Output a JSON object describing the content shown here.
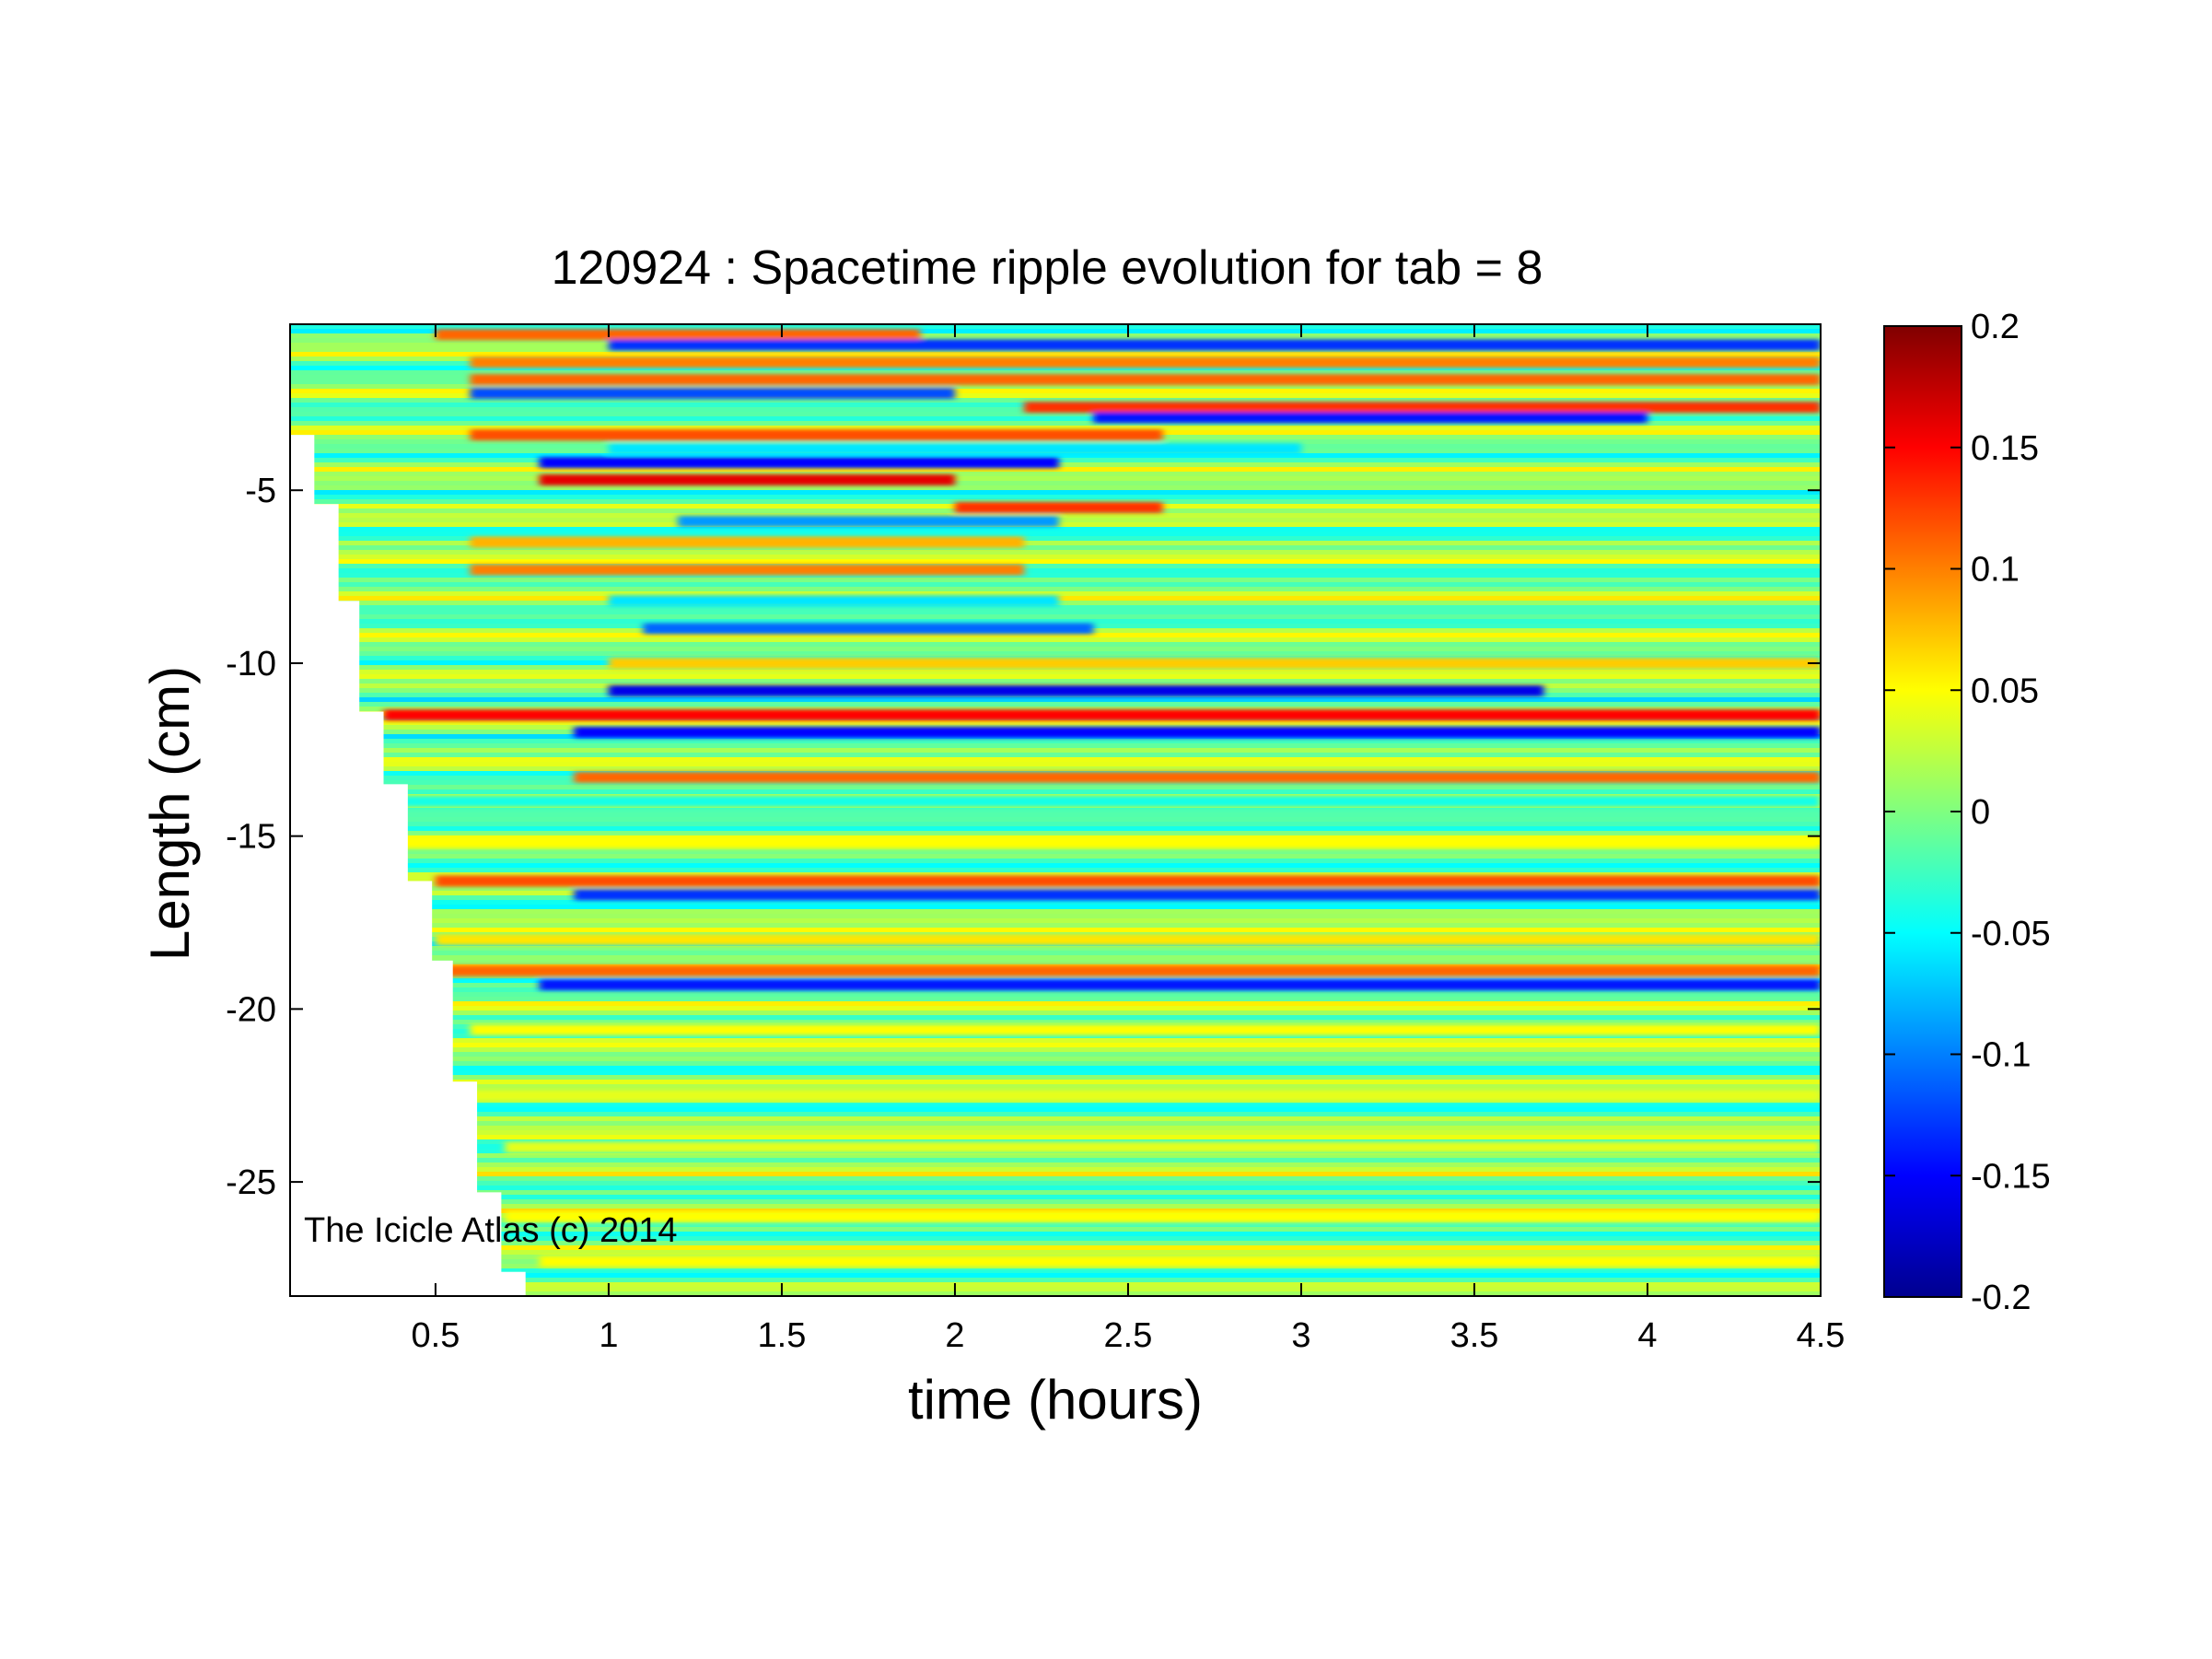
{
  "chart_data": {
    "type": "heatmap",
    "title": "120924 : Spacetime ripple evolution for tab = 8",
    "xlabel": "time (hours)",
    "ylabel": "Length (cm)",
    "xlim": [
      0.08,
      4.5
    ],
    "ylim": [
      -28.3,
      -0.2
    ],
    "x_ticks": [
      0.5,
      1,
      1.5,
      2,
      2.5,
      3,
      3.5,
      4,
      4.5
    ],
    "x_tick_labels": [
      "0.5",
      "1",
      "1.5",
      "2",
      "2.5",
      "3",
      "3.5",
      "4",
      "4.5"
    ],
    "y_ticks": [
      -5,
      -10,
      -15,
      -20,
      -25
    ],
    "y_tick_labels": [
      "-5",
      "-10",
      "-15",
      "-20",
      "-25"
    ],
    "colormap": "jet",
    "clim": [
      -0.2,
      0.2
    ],
    "colorbar_ticks": [
      0.2,
      0.15,
      0.1,
      0.05,
      0,
      -0.05,
      -0.1,
      -0.15,
      -0.2
    ],
    "colorbar_tick_labels": [
      "0.2",
      "0.15",
      "0.1",
      "0.05",
      "0",
      "-0.05",
      "-0.1",
      "-0.15",
      "-0.2"
    ],
    "annotation": "The Icicle Atlas (c) 2014",
    "data_start_boundary": [
      {
        "length": -3.4,
        "start_time": 0.08
      },
      {
        "length": -5.4,
        "start_time": 0.15
      },
      {
        "length": -8.2,
        "start_time": 0.22
      },
      {
        "length": -11.4,
        "start_time": 0.28
      },
      {
        "length": -13.5,
        "start_time": 0.35
      },
      {
        "length": -16.3,
        "start_time": 0.42
      },
      {
        "length": -18.6,
        "start_time": 0.49
      },
      {
        "length": -22.1,
        "start_time": 0.55
      },
      {
        "length": -25.3,
        "start_time": 0.62
      },
      {
        "length": -27.6,
        "start_time": 0.69
      },
      {
        "length": -28.3,
        "start_time": 0.76
      }
    ],
    "bands": [
      {
        "length": -0.5,
        "t_start": 0.5,
        "t_end": 1.9,
        "value": 0.11
      },
      {
        "length": -0.8,
        "t_start": 1.0,
        "t_end": 4.5,
        "value": -0.13
      },
      {
        "length": -1.3,
        "t_start": 0.6,
        "t_end": 4.5,
        "value": 0.1
      },
      {
        "length": -1.8,
        "t_start": 0.6,
        "t_end": 4.5,
        "value": 0.11
      },
      {
        "length": -2.2,
        "t_start": 0.6,
        "t_end": 2.0,
        "value": -0.12
      },
      {
        "length": -2.6,
        "t_start": 2.2,
        "t_end": 4.5,
        "value": 0.13
      },
      {
        "length": -2.9,
        "t_start": 2.4,
        "t_end": 4.0,
        "value": -0.14
      },
      {
        "length": -3.4,
        "t_start": 0.6,
        "t_end": 2.6,
        "value": 0.12
      },
      {
        "length": -3.8,
        "t_start": 1.0,
        "t_end": 3.0,
        "value": -0.06
      },
      {
        "length": -4.2,
        "t_start": 0.8,
        "t_end": 2.3,
        "value": -0.15
      },
      {
        "length": -4.7,
        "t_start": 0.8,
        "t_end": 2.0,
        "value": 0.16
      },
      {
        "length": -5.5,
        "t_start": 2.0,
        "t_end": 2.6,
        "value": 0.13
      },
      {
        "length": -5.9,
        "t_start": 1.2,
        "t_end": 2.3,
        "value": -0.09
      },
      {
        "length": -6.5,
        "t_start": 0.6,
        "t_end": 2.2,
        "value": 0.08
      },
      {
        "length": -7.3,
        "t_start": 0.6,
        "t_end": 2.2,
        "value": 0.1
      },
      {
        "length": -8.2,
        "t_start": 1.0,
        "t_end": 2.3,
        "value": -0.06
      },
      {
        "length": -9.0,
        "t_start": 1.1,
        "t_end": 2.4,
        "value": -0.11
      },
      {
        "length": -10.0,
        "t_start": 1.0,
        "t_end": 4.5,
        "value": 0.07
      },
      {
        "length": -10.8,
        "t_start": 1.0,
        "t_end": 3.7,
        "value": -0.16
      },
      {
        "length": -11.5,
        "t_start": 0.35,
        "t_end": 4.5,
        "value": 0.15
      },
      {
        "length": -12.0,
        "t_start": 0.9,
        "t_end": 4.5,
        "value": -0.15
      },
      {
        "length": -13.3,
        "t_start": 0.9,
        "t_end": 4.5,
        "value": 0.11
      },
      {
        "length": -14.0,
        "t_start": 0.4,
        "t_end": 4.5,
        "value": -0.04
      },
      {
        "length": -15.2,
        "t_start": 0.4,
        "t_end": 4.5,
        "value": 0.05
      },
      {
        "length": -16.3,
        "t_start": 0.5,
        "t_end": 4.5,
        "value": 0.12
      },
      {
        "length": -16.7,
        "t_start": 0.9,
        "t_end": 4.5,
        "value": -0.13
      },
      {
        "length": -18.0,
        "t_start": 0.5,
        "t_end": 4.5,
        "value": 0.06
      },
      {
        "length": -18.9,
        "t_start": 0.5,
        "t_end": 4.5,
        "value": 0.11
      },
      {
        "length": -19.3,
        "t_start": 0.8,
        "t_end": 4.5,
        "value": -0.14
      },
      {
        "length": -20.6,
        "t_start": 0.6,
        "t_end": 4.5,
        "value": 0.05
      },
      {
        "length": -22.5,
        "t_start": 0.6,
        "t_end": 4.5,
        "value": 0.04
      },
      {
        "length": -24.0,
        "t_start": 0.7,
        "t_end": 4.5,
        "value": 0.04
      },
      {
        "length": -26.0,
        "t_start": 0.7,
        "t_end": 4.5,
        "value": 0.05
      },
      {
        "length": -27.3,
        "t_start": 0.8,
        "t_end": 4.5,
        "value": 0.05
      }
    ]
  }
}
